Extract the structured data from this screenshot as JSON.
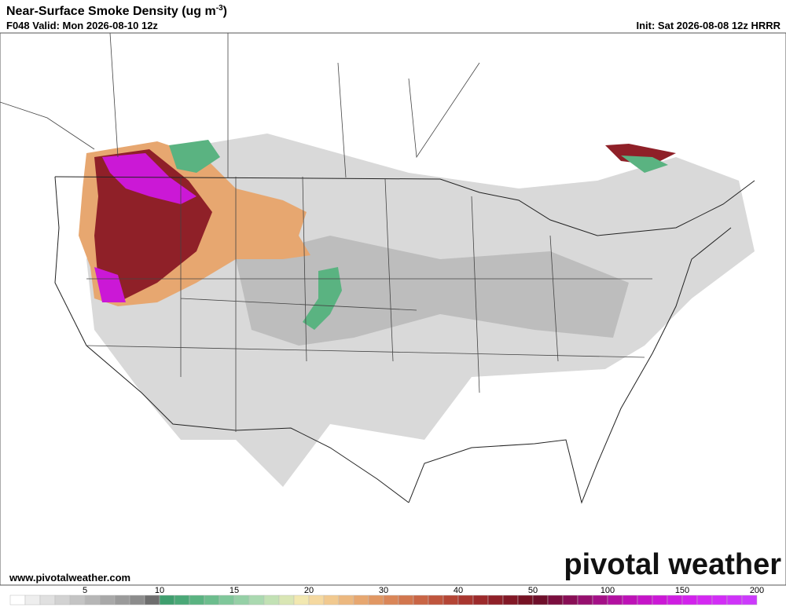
{
  "header": {
    "title": "Near-Surface Smoke Density (ug m",
    "title_sup": "-3",
    "title_end": ")",
    "valid": "F048 Valid: Mon 2026-08-10 12z",
    "init": "Init: Sat 2026-08-08 12z HRRR"
  },
  "footer": {
    "url": "www.pivotalweather.com",
    "logo": "pivotal weather"
  },
  "colorbar": {
    "labels": [
      5,
      10,
      15,
      20,
      30,
      40,
      50,
      100,
      150,
      200
    ],
    "colors": [
      "#ffffff",
      "#eeeeee",
      "#e0e0e0",
      "#d2d2d2",
      "#c4c4c4",
      "#b6b6b6",
      "#a8a8a8",
      "#9a9a9a",
      "#8c8c8c",
      "#6e6e6e",
      "#3f9e6e",
      "#4aa877",
      "#5ab381",
      "#6cbd8d",
      "#7fc79a",
      "#95d0a6",
      "#aad9b0",
      "#c2e1b4",
      "#d9e6b4",
      "#f2e8b0",
      "#f5d9a0",
      "#f1c98f",
      "#ecb87f",
      "#e7a770",
      "#e19763",
      "#da8658",
      "#d2764e",
      "#c96545",
      "#bf553d",
      "#b44535",
      "#a8362f",
      "#9c2a2b",
      "#8f2028",
      "#821826",
      "#761224",
      "#6e0f2a",
      "#7a0e3e",
      "#880e55",
      "#960f6e",
      "#a41087",
      "#b210a0",
      "#bd12b6",
      "#c514c8",
      "#cb18d6",
      "#cf1de2",
      "#d222ec",
      "#d428f2",
      "#d22df6",
      "#cf33f9",
      "#cc3afc"
    ]
  }
}
